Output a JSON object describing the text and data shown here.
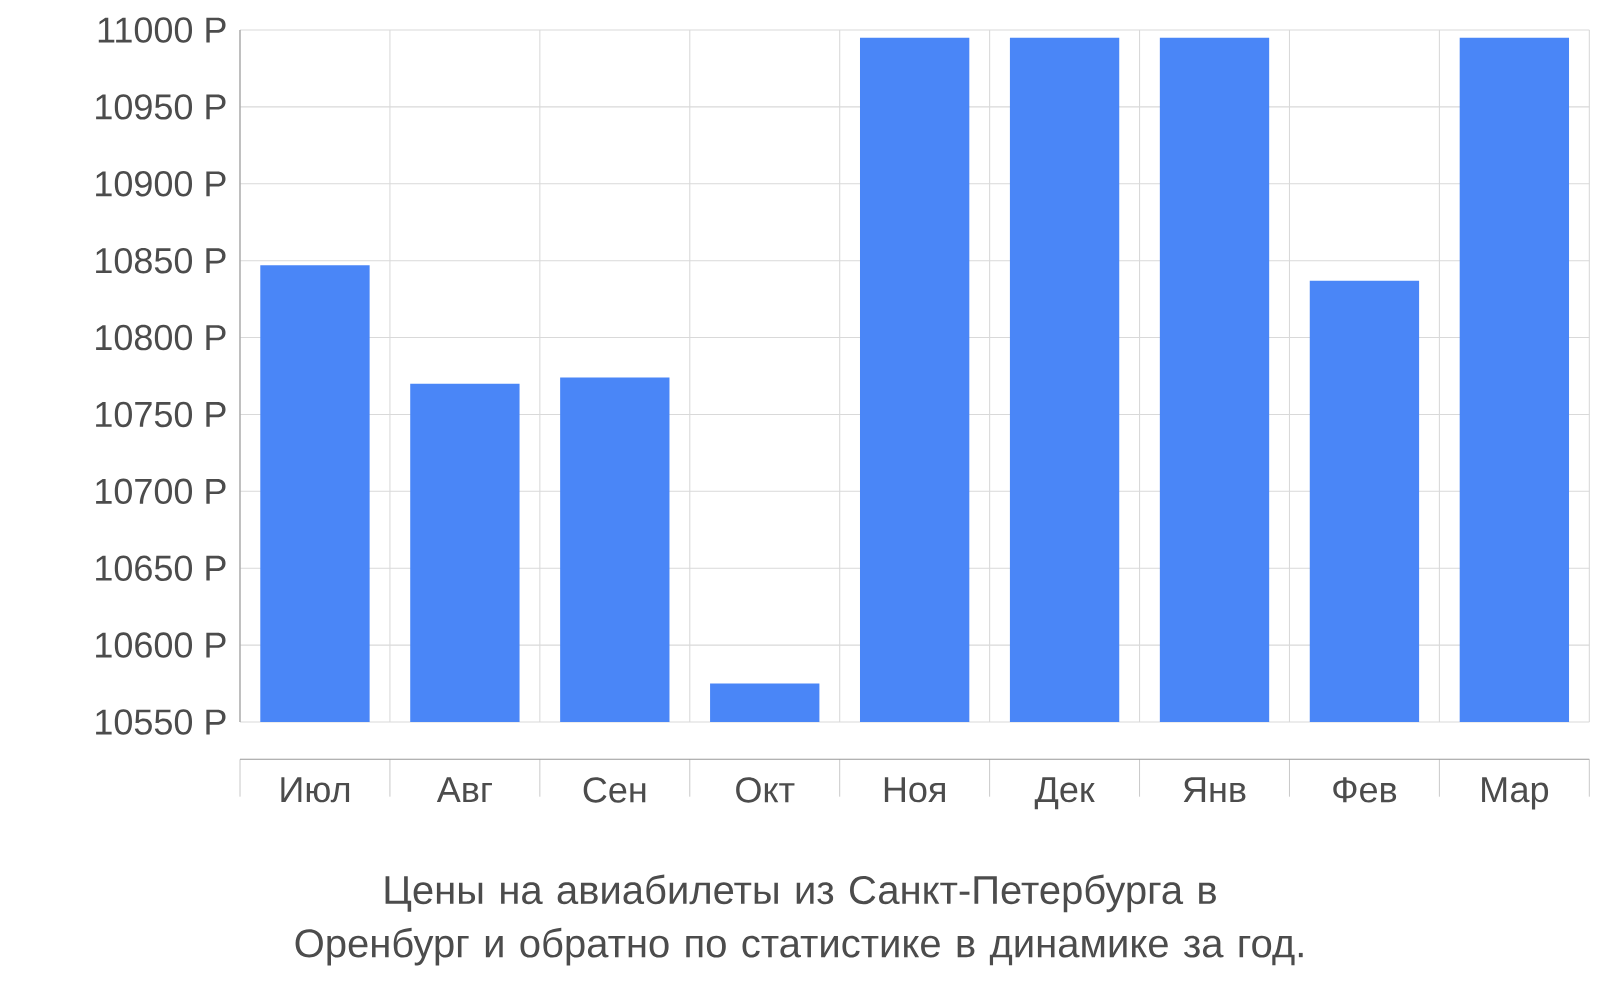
{
  "chart_data": {
    "type": "bar",
    "categories": [
      "Июл",
      "Авг",
      "Сен",
      "Окт",
      "Ноя",
      "Дек",
      "Янв",
      "Фев",
      "Мар"
    ],
    "values": [
      10847,
      10770,
      10774,
      10575,
      10995,
      10995,
      10995,
      10837,
      10995
    ],
    "color": "#4a86f7",
    "ylim": [
      10550,
      11000
    ],
    "yticks": [
      {
        "value": 10550,
        "label": "10550 Р"
      },
      {
        "value": 10600,
        "label": "10600 Р"
      },
      {
        "value": 10650,
        "label": "10650 Р"
      },
      {
        "value": 10700,
        "label": "10700 Р"
      },
      {
        "value": 10750,
        "label": "10750 Р"
      },
      {
        "value": 10800,
        "label": "10800 Р"
      },
      {
        "value": 10850,
        "label": "10850 Р"
      },
      {
        "value": 10900,
        "label": "10900 Р"
      },
      {
        "value": 10950,
        "label": "10950 Р"
      },
      {
        "value": 11000,
        "label": "11000 Р"
      }
    ],
    "grid": true,
    "annotations": [
      "Цены на авиабилеты из Санкт-Петербурга в Оренбург и обратно по статистике в динамике за год."
    ]
  }
}
